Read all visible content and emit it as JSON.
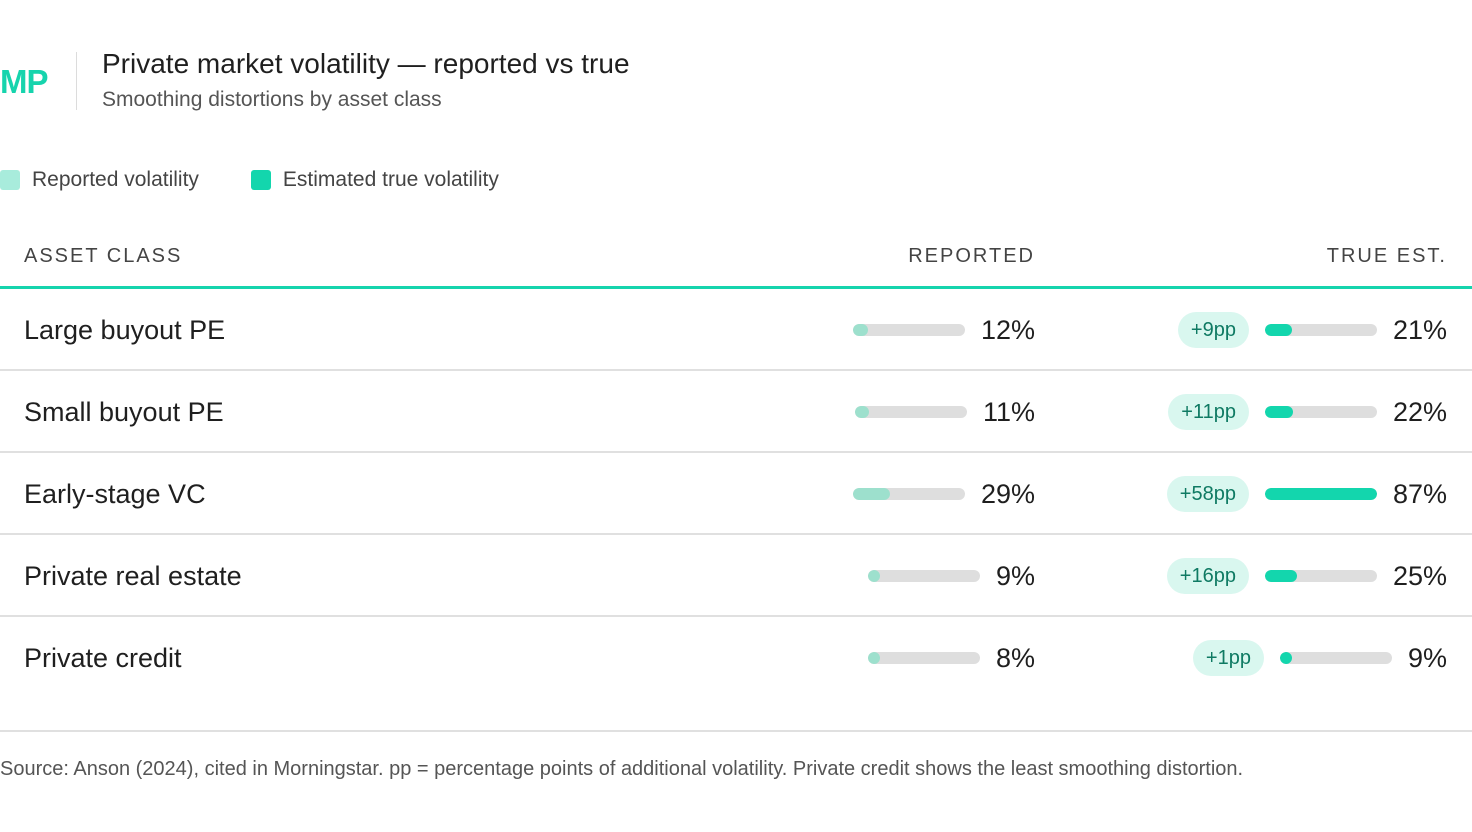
{
  "header": {
    "logo": "MP",
    "title": "Private market volatility — reported vs true",
    "subtitle": "Smoothing distortions by asset class"
  },
  "legend": {
    "reported": "Reported volatility",
    "true": "Estimated true volatility"
  },
  "columns": {
    "asset_class": "ASSET CLASS",
    "reported": "REPORTED",
    "true_est": "TRUE EST."
  },
  "colors": {
    "accent": "#16d4ad",
    "reported_fill": "#9de0cd",
    "true_fill": "#13d6ad",
    "pill_bg": "#d9f7ef",
    "pill_text": "#0f7a63",
    "track": "#dedede"
  },
  "rows": [
    {
      "asset_class": "Large buyout PE",
      "reported_label": "12%",
      "diff": "+9pp",
      "true_label": "21%"
    },
    {
      "asset_class": "Small buyout PE",
      "reported_label": "11%",
      "diff": "+11pp",
      "true_label": "22%"
    },
    {
      "asset_class": "Early-stage VC",
      "reported_label": "29%",
      "diff": "+58pp",
      "true_label": "87%"
    },
    {
      "asset_class": "Private real estate",
      "reported_label": "9%",
      "diff": "+16pp",
      "true_label": "25%"
    },
    {
      "asset_class": "Private credit",
      "reported_label": "8%",
      "diff": "+1pp",
      "true_label": "9%"
    }
  ],
  "chart_data": {
    "type": "bar",
    "categories": [
      "Large buyout PE",
      "Small buyout PE",
      "Early-stage VC",
      "Private real estate",
      "Private credit"
    ],
    "series": [
      {
        "name": "Reported volatility",
        "values": [
          12,
          11,
          29,
          9,
          8
        ]
      },
      {
        "name": "Estimated true volatility",
        "values": [
          21,
          22,
          87,
          25,
          9
        ]
      }
    ],
    "differences_pp": [
      9,
      11,
      58,
      16,
      1
    ],
    "ylim": [
      0,
      87
    ],
    "legend": "top-left"
  },
  "footer": {
    "source": "Source: Anson (2024), cited in Morningstar. pp = percentage points of additional volatility. Private credit shows the least smoothing distortion."
  }
}
